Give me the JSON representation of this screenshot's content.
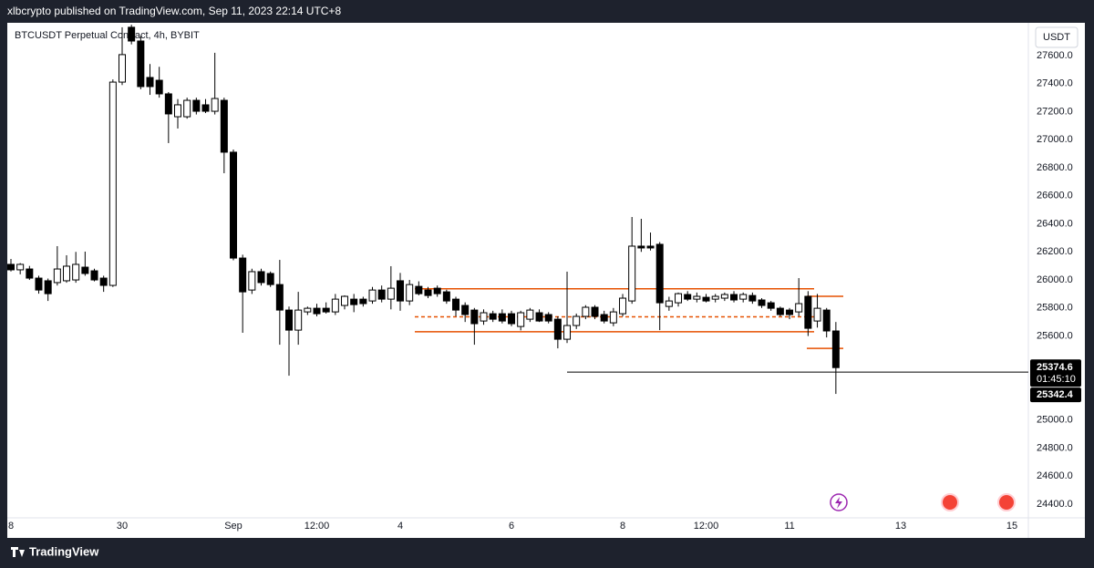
{
  "header": "xlbcrypto published on TradingView.com, Sep 11, 2023 22:14 UTC+8",
  "brand": "TradingView",
  "chart_data": {
    "type": "candlestick",
    "title": "BTCUSDT Perpetual Contract, 4h, BYBIT",
    "currency": "USDT",
    "countdown": "01:45:10",
    "up_color": "#ffffff",
    "down_color": "#000000",
    "border_color": "#000000",
    "ylim": [
      24303,
      27834
    ],
    "yticks": [
      {
        "value": 24400,
        "label": "24400.0"
      },
      {
        "value": 24600,
        "label": "24600.0"
      },
      {
        "value": 24800,
        "label": "24800.0"
      },
      {
        "value": 25000,
        "label": "25000.0"
      },
      {
        "value": 25200,
        "label": "25200.0"
      },
      {
        "value": 25400,
        "label": "25400.0"
      },
      {
        "value": 25600,
        "label": "25600.0"
      },
      {
        "value": 25800,
        "label": "25800.0"
      },
      {
        "value": 26000,
        "label": "26000.0"
      },
      {
        "value": 26200,
        "label": "26200.0"
      },
      {
        "value": 26400,
        "label": "26400.0"
      },
      {
        "value": 26600,
        "label": "26600.0"
      },
      {
        "value": 26800,
        "label": "26800.0"
      },
      {
        "value": 27000,
        "label": "27000.0"
      },
      {
        "value": 27200,
        "label": "27200.0"
      },
      {
        "value": 27400,
        "label": "27400.0"
      },
      {
        "value": 27600,
        "label": "27600.0"
      }
    ],
    "categories": [
      "8",
      null,
      null,
      null,
      null,
      null,
      null,
      null,
      null,
      null,
      null,
      null,
      "30",
      null,
      null,
      null,
      null,
      null,
      null,
      null,
      null,
      null,
      null,
      null,
      "Sep",
      null,
      null,
      null,
      null,
      null,
      null,
      null,
      null,
      "12:00",
      null,
      null,
      null,
      null,
      null,
      null,
      null,
      null,
      "4",
      null,
      null,
      null,
      null,
      null,
      null,
      null,
      null,
      null,
      null,
      null,
      "6",
      null,
      null,
      null,
      null,
      null,
      null,
      null,
      null,
      null,
      null,
      null,
      "8",
      null,
      null,
      null,
      null,
      null,
      null,
      null,
      null,
      "12:00",
      null,
      null,
      null,
      null,
      null,
      null,
      null,
      null,
      "11",
      null,
      null,
      null,
      null,
      null,
      null,
      null,
      null,
      null,
      null,
      null,
      "13",
      null,
      null,
      null,
      null,
      null,
      null,
      null,
      null,
      null,
      null,
      null,
      "15",
      null
    ],
    "open": [
      26111,
      26072,
      26078,
      26013,
      25994,
      25981,
      25994,
      26000,
      26091,
      26065,
      26013,
      25961,
      27411,
      27802,
      27704,
      27444,
      27424,
      27327,
      27164,
      27164,
      27281,
      27249,
      27203,
      27281,
      26911,
      26156,
      25928,
      26059,
      26046,
      25967,
      25785,
      25642,
      25772,
      25798,
      25798,
      25772,
      25818,
      25863,
      25863,
      25850,
      25928,
      25863,
      25994,
      25850,
      25954,
      25928,
      25941,
      25915,
      25863,
      25818,
      25785,
      25707,
      25759,
      25759,
      25759,
      25668,
      25720,
      25766,
      25753,
      25720,
      25577,
      25675,
      25740,
      25805,
      25753,
      25694,
      25759,
      25850,
      26241,
      26241,
      26254,
      25811,
      25837,
      25896,
      25863,
      25876,
      25863,
      25870,
      25896,
      25863,
      25889,
      25857,
      25837,
      25798,
      25785,
      25772,
      25883,
      25707,
      25785,
      25636,
      null,
      null,
      null,
      null,
      null,
      null,
      null,
      null,
      null,
      null,
      null,
      null,
      null,
      null,
      null,
      null,
      null,
      null,
      null,
      null
    ],
    "high": [
      26150,
      26120,
      26100,
      26030,
      26010,
      26241,
      26176,
      26200,
      26202,
      26080,
      26030,
      27430,
      27802,
      27820,
      27740,
      27540,
      27520,
      27340,
      27290,
      27300,
      27300,
      27290,
      27620,
      27300,
      26930,
      26180,
      26080,
      26080,
      26060,
      26143,
      25810,
      25915,
      25810,
      25830,
      25840,
      25900,
      25890,
      25900,
      25880,
      25950,
      25960,
      26098,
      26050,
      26000,
      25990,
      25950,
      25960,
      25930,
      25880,
      25840,
      25800,
      25790,
      25780,
      25790,
      25780,
      25780,
      25800,
      25790,
      25770,
      25740,
      26059,
      25760,
      25820,
      25820,
      25780,
      25800,
      25900,
      26449,
      26436,
      26338,
      26270,
      25880,
      25910,
      25920,
      25910,
      25900,
      25900,
      25910,
      25920,
      25910,
      25910,
      25870,
      25850,
      25810,
      25800,
      26013,
      25920,
      25900,
      25800,
      25700,
      null,
      null,
      null,
      null,
      null,
      null,
      null,
      null,
      null,
      null,
      null,
      null,
      null,
      null,
      null,
      null,
      null,
      null,
      null,
      null
    ],
    "low": [
      26060,
      26040,
      26000,
      25902,
      25850,
      25960,
      25980,
      25980,
      26030,
      25990,
      25915,
      25950,
      27390,
      27680,
      27360,
      27320,
      27300,
      26976,
      27080,
      27150,
      27180,
      27190,
      27180,
      26761,
      26140,
      25623,
      25900,
      25960,
      25950,
      25538,
      25317,
      25538,
      25750,
      25740,
      25760,
      25750,
      25790,
      25770,
      25810,
      25830,
      25840,
      25790,
      25780,
      25820,
      25890,
      25870,
      25880,
      25830,
      25740,
      25700,
      25538,
      25680,
      25700,
      25690,
      25670,
      25640,
      25700,
      25700,
      25690,
      25512,
      25550,
      25650,
      25720,
      25720,
      25690,
      25670,
      25740,
      25830,
      26200,
      26210,
      25642,
      25780,
      25810,
      25850,
      25840,
      25840,
      25840,
      25850,
      25840,
      25840,
      25830,
      25800,
      25780,
      25740,
      25720,
      25740,
      25600,
      25660,
      25590,
      25187,
      null,
      null,
      null,
      null,
      null,
      null,
      null,
      null,
      null,
      null,
      null,
      null,
      null,
      null,
      null,
      null,
      null,
      null,
      null,
      null
    ],
    "close": [
      26072,
      26111,
      26013,
      25928,
      25902,
      26078,
      26098,
      26111,
      26046,
      26000,
      25961,
      27411,
      27607,
      27704,
      27379,
      27379,
      27327,
      27184,
      27249,
      27281,
      27203,
      27203,
      27294,
      26911,
      26156,
      25915,
      26059,
      25981,
      25967,
      25785,
      25642,
      25785,
      25798,
      25759,
      25772,
      25863,
      25883,
      25824,
      25831,
      25928,
      25863,
      25941,
      25850,
      25967,
      25902,
      25889,
      25902,
      25850,
      25785,
      25753,
      25688,
      25766,
      25720,
      25707,
      25688,
      25766,
      25785,
      25707,
      25707,
      25577,
      25675,
      25740,
      25805,
      25740,
      25707,
      25772,
      25870,
      26241,
      26228,
      26228,
      25837,
      25850,
      25902,
      25863,
      25883,
      25850,
      25883,
      25896,
      25857,
      25896,
      25850,
      25818,
      25798,
      25753,
      25753,
      25831,
      25655,
      25798,
      25636,
      25374.6,
      null,
      null,
      null,
      null,
      null,
      null,
      null,
      null,
      null,
      null,
      null,
      null,
      null,
      null,
      null,
      null,
      null,
      null,
      null,
      null
    ],
    "levels": [
      {
        "value": 25937,
        "color": "#e65100"
      },
      {
        "value": 25630,
        "color": "#e65100"
      },
      {
        "value": 25737,
        "color": "#e65100",
        "dashed": true
      },
      {
        "value": 25883,
        "color": "#e65100"
      },
      {
        "value": 25512,
        "color": "#e65100"
      },
      {
        "value": 25342.4,
        "color": "#000000"
      }
    ]
  }
}
